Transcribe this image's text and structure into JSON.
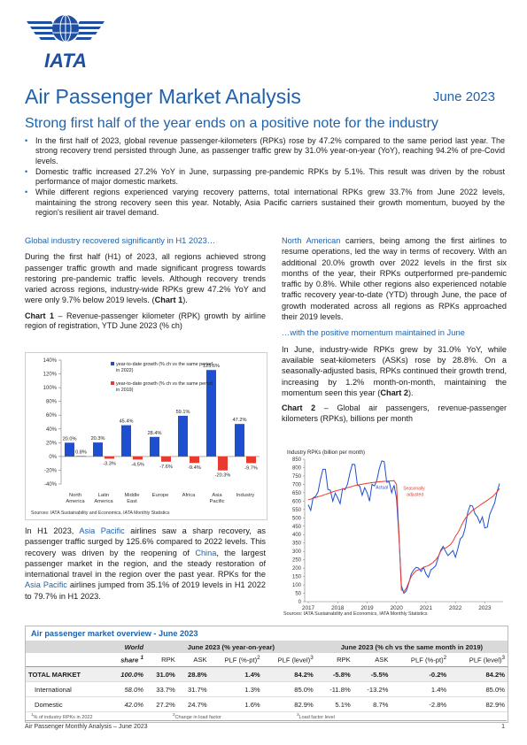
{
  "header": {
    "logo_text": "IATA",
    "title": "Air Passenger Market Analysis",
    "date": "June 2023",
    "subtitle": "Strong first half of the year ends on a positive note for the industry"
  },
  "bullets": [
    "In the first half of 2023, global revenue passenger-kilometers (RPKs) rose by 47.2% compared to the same period last year. The strong recovery trend persisted through June, as passenger traffic grew by 31.0% year-on-year (YoY), reaching 94.2% of pre-Covid levels.",
    "Domestic traffic increased 27.2% YoY in June, surpassing pre-pandemic RPKs by 5.1%. This result was driven by the robust performance of major domestic markets.",
    "While different regions experienced varying recovery patterns, total international RPKs grew 33.7% from June 2022 levels, maintaining the strong recovery seen this year. Notably, Asia Pacific carriers sustained their growth momentum, buoyed by the region's resilient air travel demand."
  ],
  "left": {
    "heading": "Global industry recovered significantly in H1 2023…",
    "para1_a": "During the first half (H1) of 2023, all regions achieved strong passenger traffic growth and made significant progress towards restoring pre-pandemic traffic levels. Although recovery trends varied across regions, industry-wide RPKs grew 47.2% YoY and were only 9.7% below 2019 levels. (",
    "para1_ref": "Chart 1",
    "para1_b": ").",
    "chart1_caption_bold": "Chart 1",
    "chart1_caption": " – Revenue-passenger kilometer (RPK) growth by airline region of registration, YTD June 2023 (% ch)",
    "para2_a": "In H1 2023, ",
    "para2_link1": "Asia Pacific",
    "para2_b": " airlines saw a sharp recovery, as passenger traffic surged by 125.6% compared to 2022 levels. This recovery was driven by the reopening of ",
    "para2_link2": "China",
    "para2_c": ", the largest passenger market in the region, and the steady restoration of international travel in the region over the past year. RPKs for the ",
    "para2_link3": "Asia Pacific",
    "para2_d": " airlines jumped from 35.1% of 2019 levels in H1 2022 to 79.7% in H1 2023."
  },
  "right": {
    "para1_link": "North American",
    "para1": " carriers, being among the first airlines to resume operations, led the way in terms of recovery. With an additional 20.0% growth over 2022 levels in the first six months of the year, their RPKs outperformed pre-pandemic traffic by 0.8%. While other regions also experienced notable traffic recovery year-to-date (YTD) through June, the pace of growth moderated across all regions as RPKs approached their 2019 levels.",
    "heading": "…with the positive momentum maintained in June",
    "para2_a": "In June, industry-wide RPKs grew by 31.0% YoY, while available seat-kilometers (ASKs) rose by 28.8%. On a seasonally-adjusted basis, RPKs continued their growth trend, increasing by 1.2% month-on-month, maintaining the momentum seen this year (",
    "para2_ref": "Chart 2",
    "para2_b": ").",
    "chart2_caption_bold": "Chart 2",
    "chart2_caption": " – Global air passengers, revenue-passenger kilometers (RPKs), billions per month"
  },
  "chart_data": [
    {
      "type": "bar",
      "categories": [
        "North America",
        "Latin America",
        "Middle East",
        "Europe",
        "Africa",
        "Asia Pacific",
        "Industry"
      ],
      "series": [
        {
          "name": "year-to-date growth (% ch vs the same period in 2022)",
          "values": [
            20.0,
            20.3,
            45.4,
            28.4,
            59.1,
            125.6,
            47.2
          ],
          "color": "#1e4fd1"
        },
        {
          "name": "year-to-date growth (% ch vs the same period in 2019)",
          "values": [
            0.8,
            -3.3,
            -4.5,
            -7.6,
            -9.4,
            -20.3,
            -9.7
          ],
          "color": "#e83a2f"
        }
      ],
      "data_labels": [
        [
          "20.0%",
          "20.3%",
          "45.4%",
          "28.4%",
          "59.1%",
          "125.6%",
          "47.2%"
        ],
        [
          "0.8%",
          "-3.3%",
          "-4.5%",
          "-7.6%",
          "-9.4%",
          "-20.3%",
          "-9.7%"
        ]
      ],
      "yticks": [
        "-40%",
        "-20%",
        "0%",
        "20%",
        "40%",
        "60%",
        "80%",
        "100%",
        "120%",
        "140%"
      ],
      "ylim": [
        -40,
        140
      ],
      "legend": "top-left",
      "source": "Sources: IATA Sustainability and Economics, IATA Monthly Statistics"
    },
    {
      "type": "line",
      "title": "Industry RPKs (billion per month)",
      "xticks": [
        "2017",
        "2018",
        "2019",
        "2020",
        "2021",
        "2022",
        "2023"
      ],
      "yticks": [
        "0",
        "50",
        "100",
        "150",
        "200",
        "250",
        "300",
        "350",
        "400",
        "450",
        "500",
        "550",
        "600",
        "650",
        "700",
        "750",
        "800",
        "850"
      ],
      "ylim": [
        0,
        850
      ],
      "series": [
        {
          "name": "Actual",
          "color": "#1e4fd1",
          "values": [
            578,
            545,
            620,
            628,
            655,
            730,
            790,
            790,
            670,
            665,
            600,
            648,
            620,
            585,
            675,
            668,
            700,
            768,
            820,
            818,
            700,
            688,
            635,
            680,
            650,
            600,
            700,
            690,
            725,
            795,
            840,
            835,
            712,
            715,
            650,
            695,
            615,
            380,
            95,
            50,
            65,
            110,
            165,
            190,
            205,
            200,
            180,
            205,
            165,
            145,
            190,
            200,
            215,
            265,
            305,
            330,
            300,
            275,
            290,
            305,
            265,
            315,
            375,
            390,
            440,
            530,
            575,
            570,
            525,
            505,
            470,
            505,
            440,
            445,
            520,
            555,
            590,
            655,
            705
          ]
        },
        {
          "name": "Seasonally adjusted",
          "color": "#e83a2f",
          "values": [
            608,
            612,
            617,
            621,
            626,
            630,
            635,
            640,
            645,
            650,
            655,
            660,
            664,
            668,
            672,
            676,
            680,
            684,
            688,
            692,
            695,
            698,
            701,
            704,
            706,
            708,
            710,
            712,
            714,
            716,
            717,
            718,
            719,
            720,
            721,
            722,
            700,
            400,
            70,
            60,
            80,
            115,
            150,
            170,
            185,
            190,
            195,
            205,
            210,
            215,
            225,
            235,
            250,
            270,
            300,
            320,
            320,
            330,
            340,
            360,
            390,
            410,
            440,
            470,
            495,
            515,
            530,
            545,
            555,
            565,
            575,
            585,
            595,
            605,
            615,
            625,
            640,
            655,
            675
          ]
        }
      ],
      "source": "Sources: IATA Sustainability and Economics, IATA Monthly Statistics"
    }
  ],
  "table": {
    "title": "Air passenger market overview - June 2023",
    "world_label": "World",
    "share_label": "share",
    "share_sup": "1",
    "group1": "June 2023 (% year-on-year)",
    "group2": "June 2023 (% ch vs the same month in 2019)",
    "cols": [
      "RPK",
      "ASK",
      "PLF (%-pt)",
      "PLF (level)"
    ],
    "col_sups": [
      "",
      "",
      "2",
      "3"
    ],
    "rows": [
      {
        "label": "TOTAL MARKET",
        "share": "100.0%",
        "v": [
          "31.0%",
          "28.8%",
          "1.4%",
          "84.2%",
          "-5.8%",
          "-5.5%",
          "-0.2%",
          "84.2%"
        ]
      },
      {
        "label": "International",
        "share": "58.0%",
        "v": [
          "33.7%",
          "31.7%",
          "1.3%",
          "85.0%",
          "-11.8%",
          "-13.2%",
          "1.4%",
          "85.0%"
        ]
      },
      {
        "label": "Domestic",
        "share": "42.0%",
        "v": [
          "27.2%",
          "24.7%",
          "1.6%",
          "82.9%",
          "5.1%",
          "8.7%",
          "-2.8%",
          "82.9%"
        ]
      }
    ],
    "footnote1": "% of industry RPKs in 2022",
    "footnote2": "Change in load factor",
    "footnote3": "Load factor level"
  },
  "footer": {
    "left": "Air Passenger Monthly Analysis – June 2023",
    "page": "1"
  }
}
